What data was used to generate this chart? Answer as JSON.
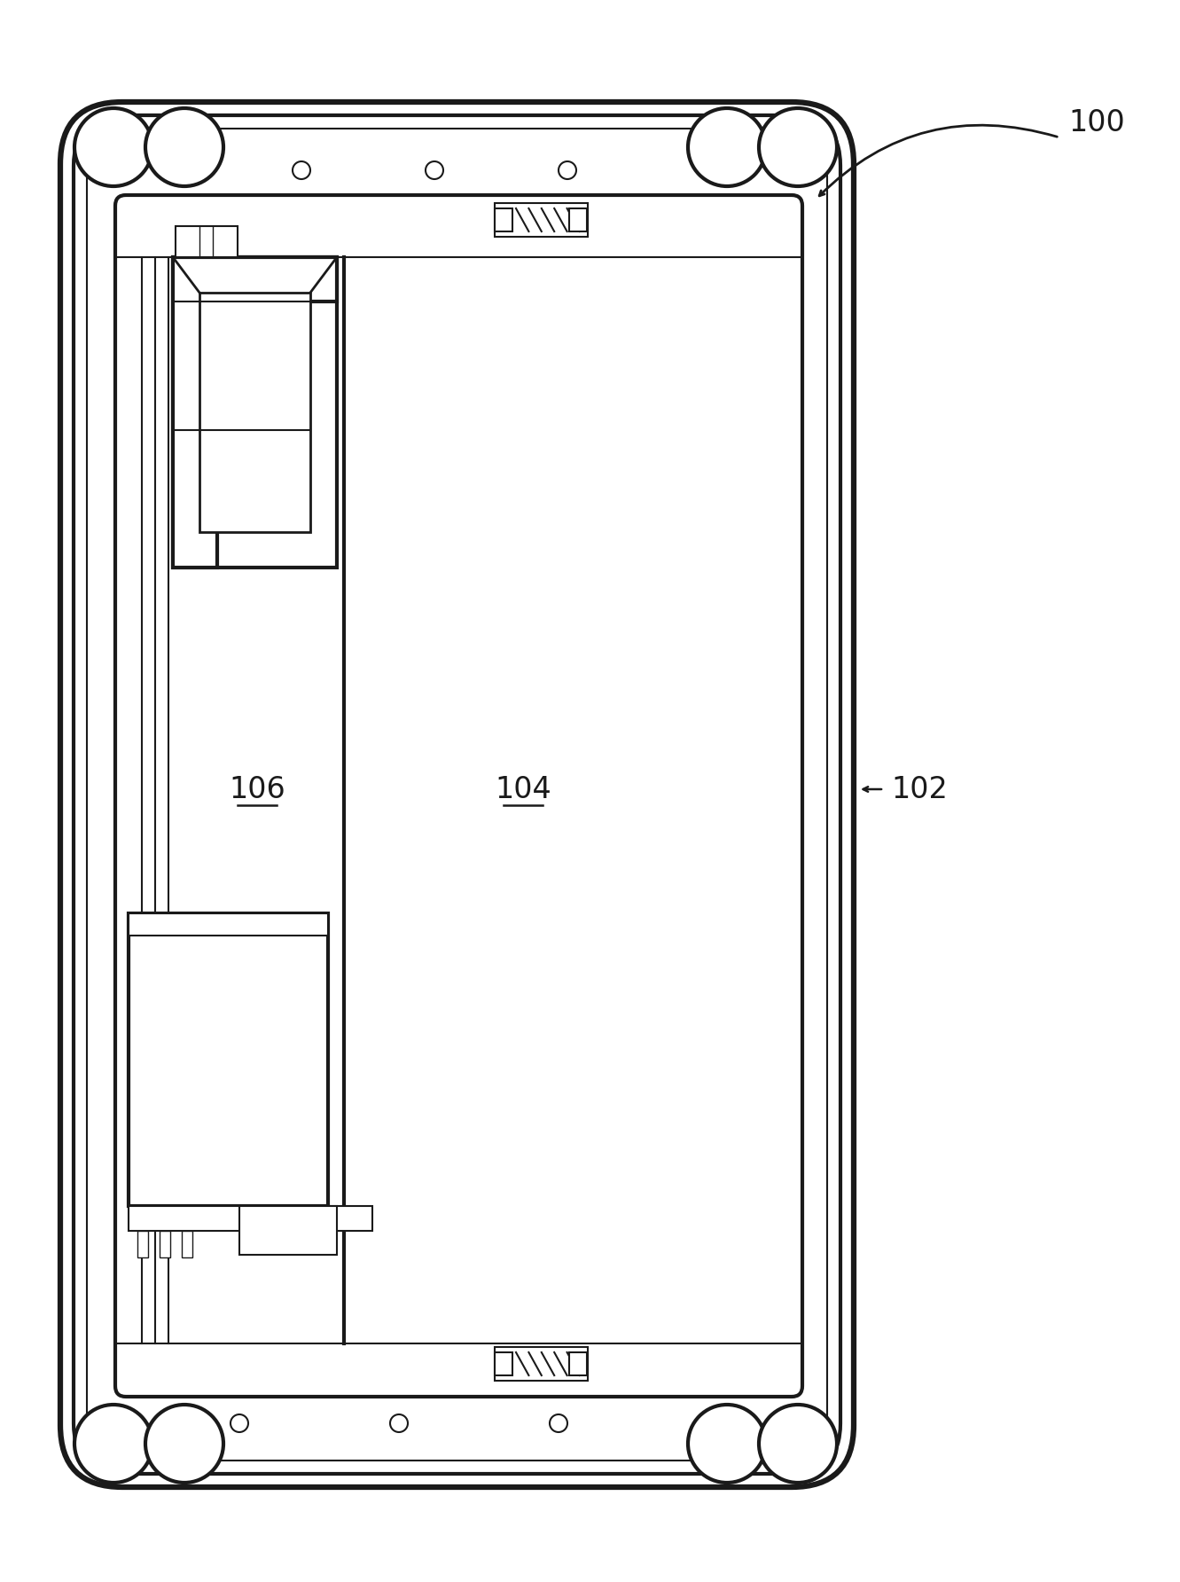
{
  "bg_color": "#ffffff",
  "line_color": "#1a1a1a",
  "lw_outer": 4.5,
  "lw_mid": 3.0,
  "lw_inner": 2.0,
  "lw_thin": 1.5,
  "lw_very_thin": 1.0,
  "fig_width": 13.31,
  "fig_height": 17.84,
  "label_100": "100",
  "label_102": "102",
  "label_104": "104",
  "label_106": "106",
  "label_fontsize": 24
}
